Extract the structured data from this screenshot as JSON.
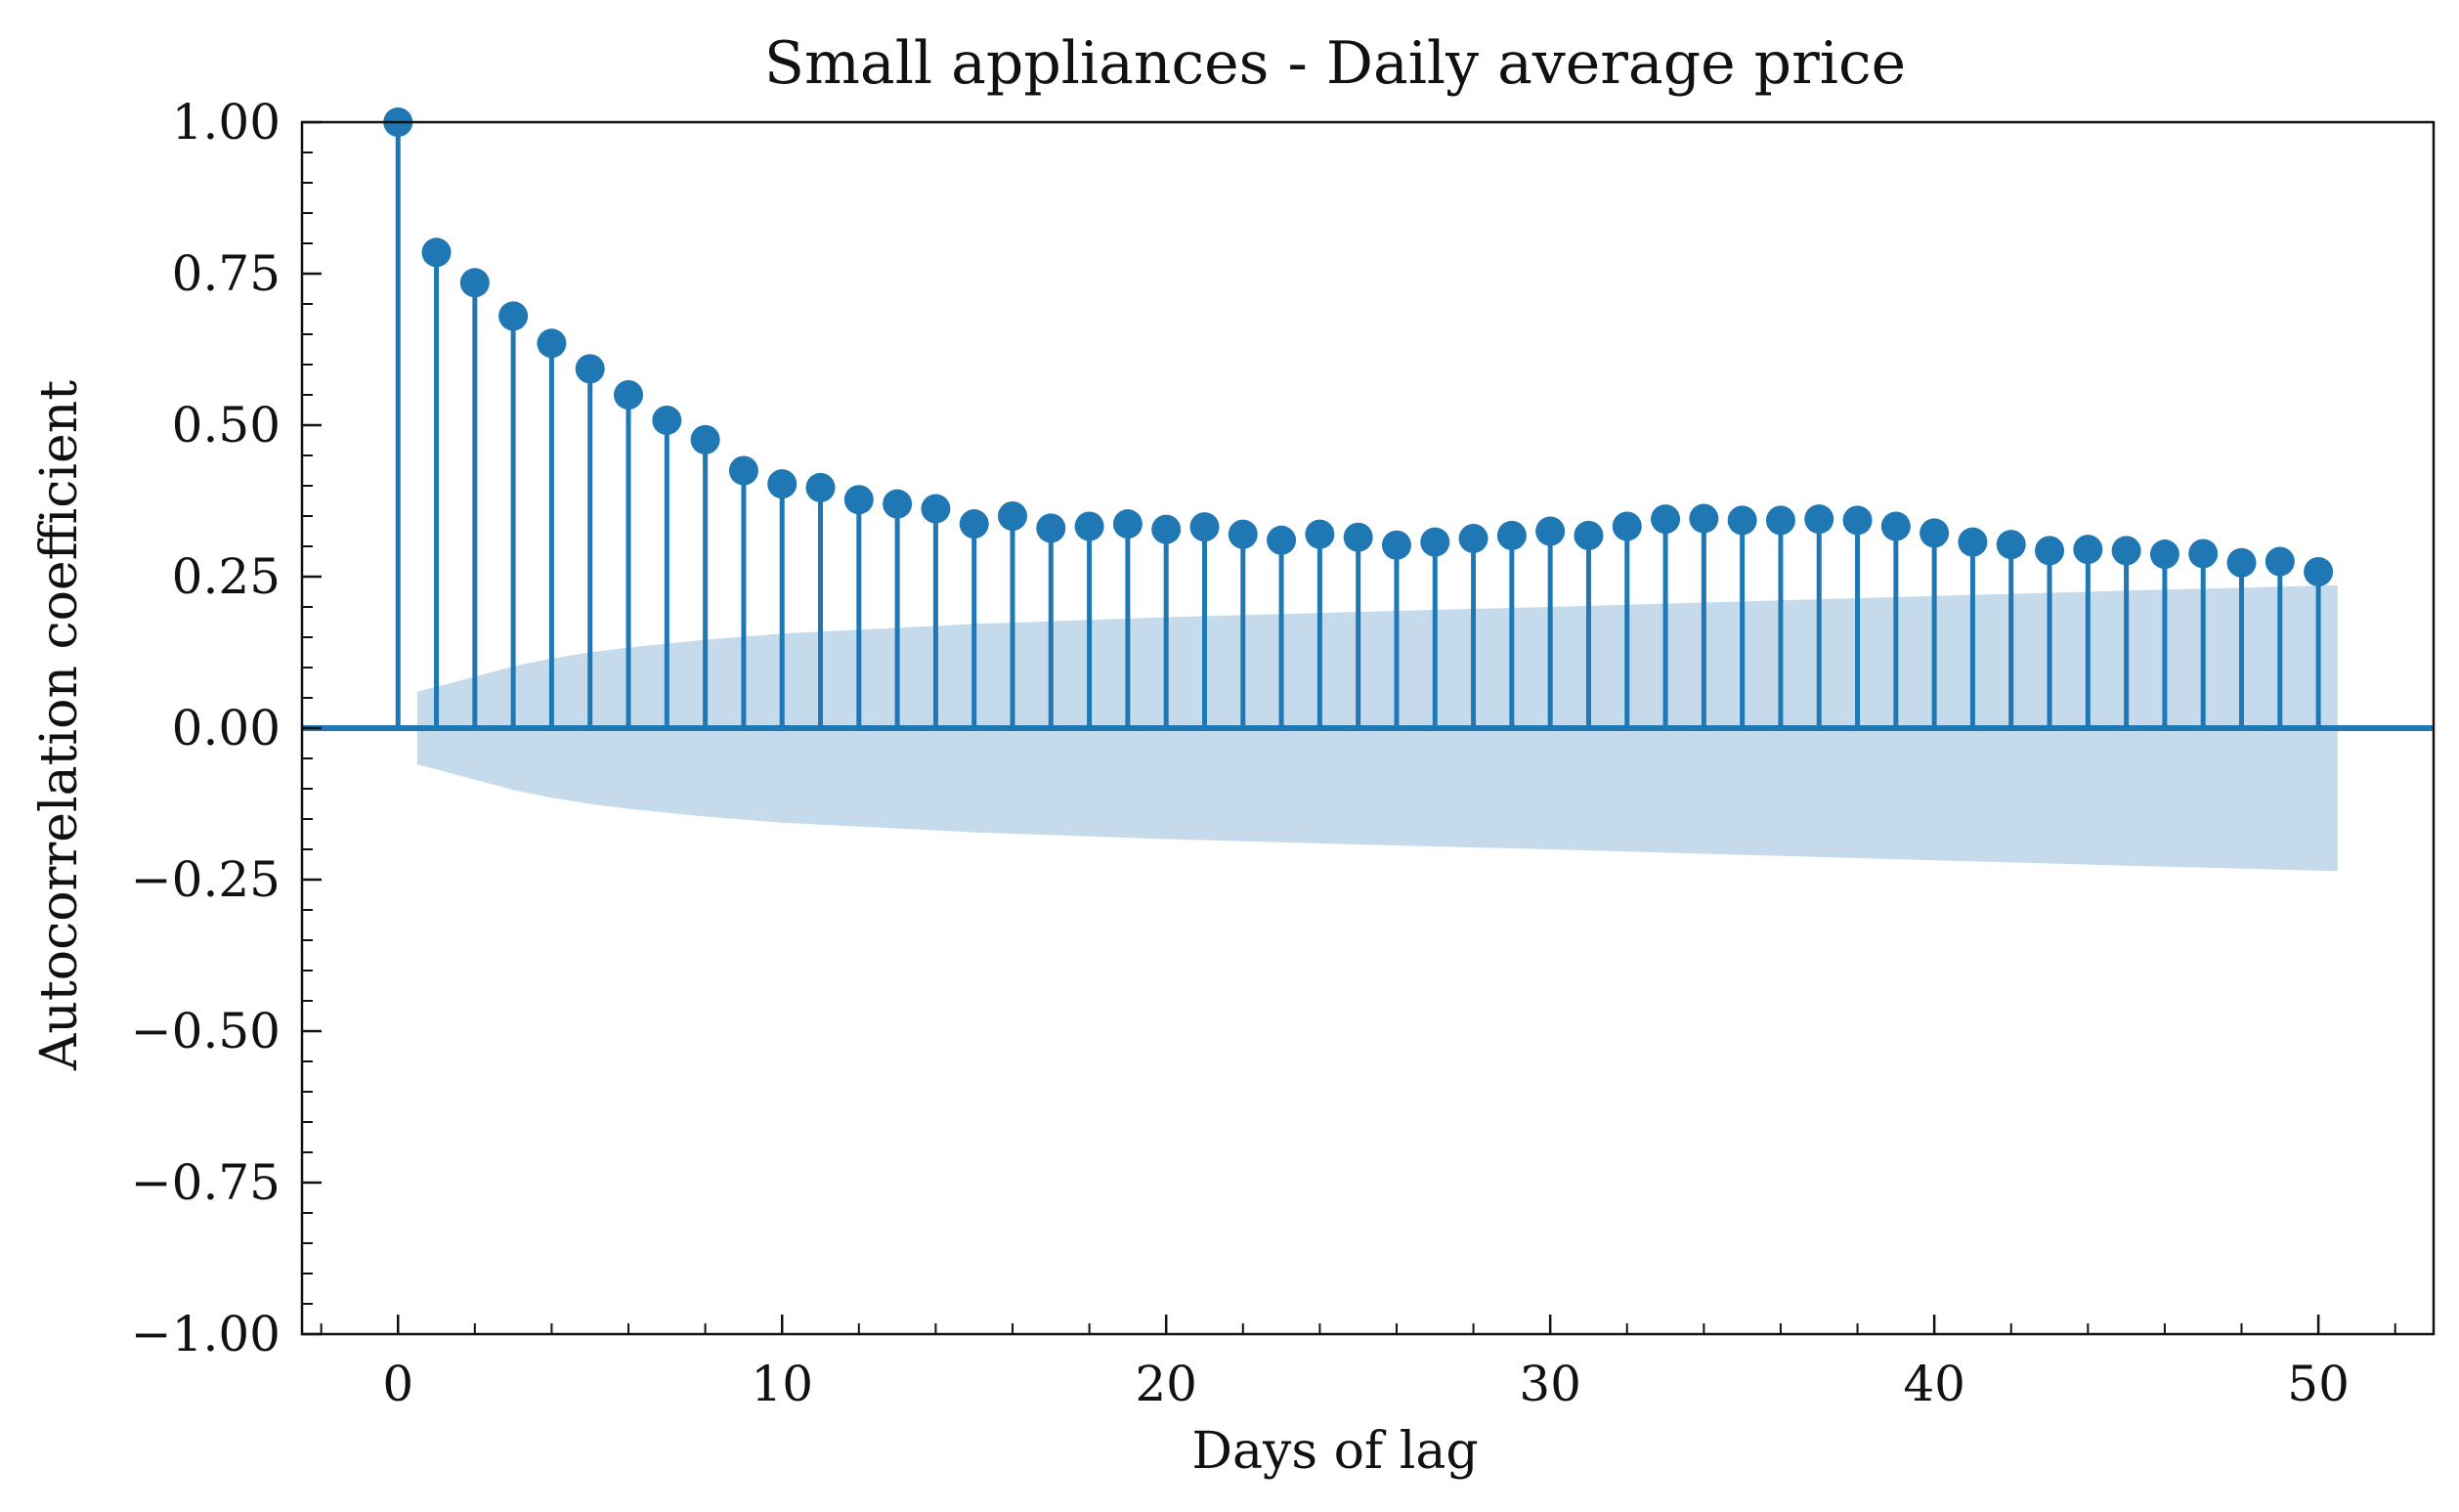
{
  "chart_data": {
    "type": "stem",
    "title": "Small appliances - Daily average price",
    "xlabel": "Days of lag",
    "ylabel": "Autocorrelation coefficient",
    "xlim": [
      -2.5,
      53
    ],
    "ylim": [
      -1.0,
      1.0
    ],
    "x_ticks": [
      0,
      10,
      20,
      30,
      40,
      50
    ],
    "x_tick_labels": [
      "0",
      "10",
      "20",
      "30",
      "40",
      "50"
    ],
    "y_ticks": [
      -1.0,
      -0.75,
      -0.5,
      -0.25,
      0.0,
      0.25,
      0.5,
      0.75,
      1.0
    ],
    "y_tick_labels": [
      "−1.00",
      "−0.75",
      "−0.50",
      "−0.25",
      "0.00",
      "0.25",
      "0.50",
      "0.75",
      "1.00"
    ],
    "grid": false,
    "lags": [
      0,
      1,
      2,
      3,
      4,
      5,
      6,
      7,
      8,
      9,
      10,
      11,
      12,
      13,
      14,
      15,
      16,
      17,
      18,
      19,
      20,
      21,
      22,
      23,
      24,
      25,
      26,
      27,
      28,
      29,
      30,
      31,
      32,
      33,
      34,
      35,
      36,
      37,
      38,
      39,
      40,
      41,
      42,
      43,
      44,
      45,
      46,
      47,
      48,
      49,
      50
    ],
    "acf": [
      1.0,
      0.785,
      0.735,
      0.68,
      0.635,
      0.593,
      0.55,
      0.508,
      0.476,
      0.425,
      0.403,
      0.397,
      0.377,
      0.37,
      0.362,
      0.337,
      0.35,
      0.33,
      0.333,
      0.337,
      0.328,
      0.332,
      0.32,
      0.31,
      0.32,
      0.315,
      0.302,
      0.307,
      0.313,
      0.318,
      0.325,
      0.318,
      0.333,
      0.345,
      0.346,
      0.343,
      0.343,
      0.345,
      0.343,
      0.333,
      0.322,
      0.307,
      0.303,
      0.293,
      0.295,
      0.293,
      0.287,
      0.288,
      0.273,
      0.275,
      0.258
    ],
    "confidence_band": {
      "x": [
        0.5,
        1,
        2,
        3,
        4,
        5,
        6,
        8,
        10,
        15,
        20,
        25,
        30,
        35,
        40,
        45,
        50,
        50.5
      ],
      "upper": [
        0.06,
        0.068,
        0.085,
        0.102,
        0.115,
        0.125,
        0.133,
        0.146,
        0.156,
        0.172,
        0.183,
        0.192,
        0.2,
        0.209,
        0.218,
        0.227,
        0.235,
        0.236
      ]
    },
    "colors": {
      "stem": "#1f77b4",
      "band": "#c5dbec",
      "axes": "#111111"
    }
  }
}
